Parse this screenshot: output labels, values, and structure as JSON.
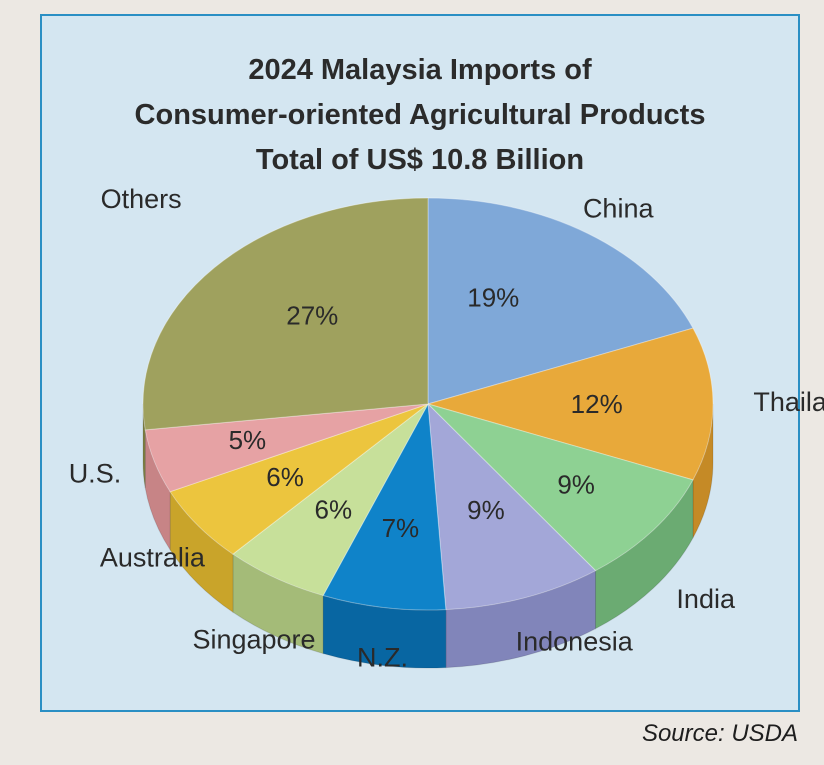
{
  "title": {
    "line1": "2024 Malaysia Imports of",
    "line2": "Consumer-oriented Agricultural Products",
    "line3": "Total of US$ 10.8 Billion"
  },
  "source": "Source: USDA",
  "chart_data": {
    "type": "pie",
    "title": "2024 Malaysia Imports of Consumer-oriented Agricultural Products",
    "subtitle": "Total of US$ 10.8 Billion",
    "unit": "%",
    "categories": [
      "China",
      "Thailand",
      "India",
      "Indonesia",
      "N.Z.",
      "Singapore",
      "Australia",
      "U.S.",
      "Others"
    ],
    "values": [
      19,
      12,
      9,
      9,
      7,
      6,
      6,
      5,
      27
    ],
    "value_labels": [
      "19%",
      "12%",
      "9%",
      "9%",
      "7%",
      "6%",
      "6%",
      "5%",
      "27%"
    ],
    "colors": [
      "#7fa8d8",
      "#e8a93a",
      "#8ed193",
      "#a3a7d8",
      "#0f83c9",
      "#c7e09a",
      "#ecc53e",
      "#e6a2a4",
      "#9fa15e"
    ],
    "side_colors": [
      "#5f86b8",
      "#c58a26",
      "#6bab72",
      "#8185ba",
      "#0866a2",
      "#a4bb78",
      "#c9a42a",
      "#c78486",
      "#7e8045"
    ]
  }
}
